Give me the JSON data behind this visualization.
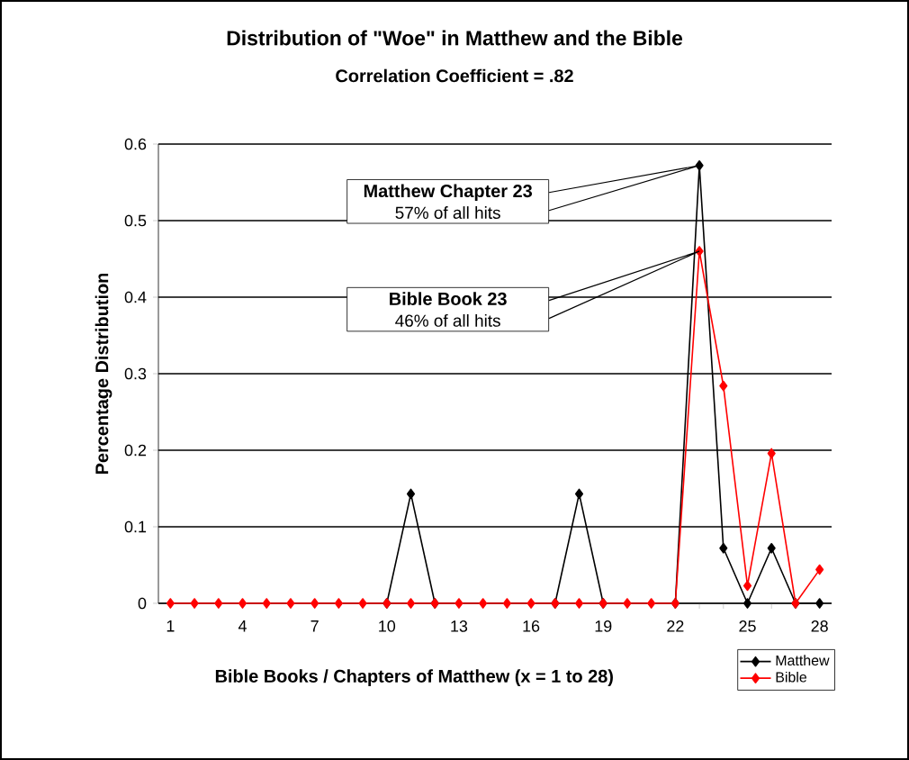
{
  "chart_data": {
    "type": "line",
    "title": "Distribution of \"Woe\" in Matthew and the Bible",
    "subtitle": "Correlation Coefficient = .82",
    "xlabel": "Bible Books / Chapters of Matthew (x = 1 to 28)",
    "ylabel": "Percentage Distribution",
    "categories": [
      "1",
      null,
      null,
      "4",
      null,
      null,
      "7",
      null,
      null,
      "10",
      null,
      null,
      "13",
      null,
      null,
      "16",
      null,
      null,
      "19",
      null,
      null,
      "22",
      null,
      null,
      "25",
      null,
      null,
      "28"
    ],
    "series": [
      {
        "name": "Matthew",
        "color": "#000000",
        "values": [
          null,
          null,
          null,
          null,
          null,
          null,
          null,
          null,
          null,
          0,
          0.143,
          0,
          null,
          null,
          null,
          null,
          0,
          0.143,
          0,
          null,
          null,
          0,
          0.572,
          0.072,
          0,
          0.072,
          0,
          0
        ]
      },
      {
        "name": "Bible",
        "color": "#ff0000",
        "values": [
          0,
          0,
          0,
          0,
          0,
          0,
          0,
          0,
          0,
          0,
          0,
          0,
          0,
          0,
          0,
          0,
          0,
          0,
          0,
          0,
          0,
          0,
          0.46,
          0.284,
          0.023,
          0.196,
          0,
          0.044
        ]
      }
    ],
    "ylim": [
      0,
      0.6
    ],
    "yticks": [
      0,
      0.1,
      0.2,
      0.3,
      0.4,
      0.5,
      0.6
    ],
    "grid": "y",
    "legend": "bottom right",
    "marker": "diamond",
    "line_style": "solid",
    "annotations": [
      "Matthew Chapter 23",
      "57% of all hits",
      "Bible Book 23",
      "46% of all hits"
    ]
  }
}
